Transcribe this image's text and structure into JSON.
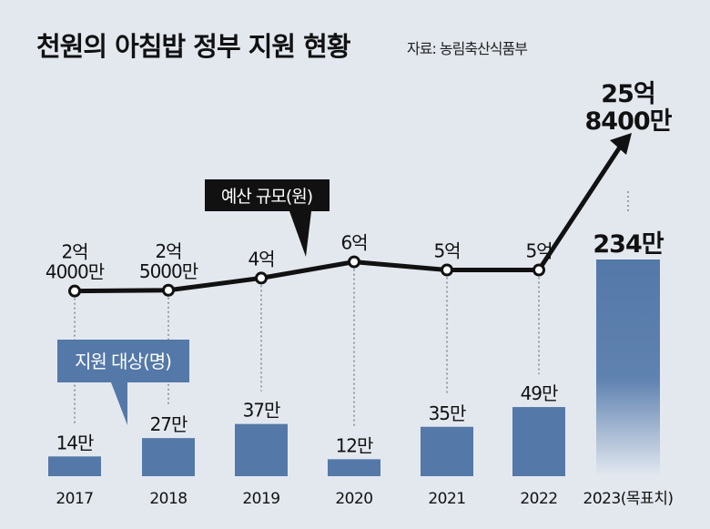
{
  "title": "천원의 아침밥 정부 지원 현황",
  "source": "자료: 농림축산식품부",
  "colors": {
    "background": "#e3e8ef",
    "bar": "#5478a8",
    "line": "#111111",
    "callout_budget": "#111111",
    "callout_people": "#5478a8"
  },
  "chart_data": {
    "type": "bar+line",
    "title": "천원의 아침밥 정부 지원 현황",
    "categories": [
      "2017",
      "2018",
      "2019",
      "2020",
      "2021",
      "2022",
      "2023(목표치)"
    ],
    "series": [
      {
        "name": "지원 대상(명)",
        "type": "bar",
        "unit": "만 명",
        "values": [
          14,
          27,
          37,
          12,
          35,
          49,
          234
        ],
        "labels": [
          "14만",
          "27만",
          "37만",
          "12만",
          "35만",
          "49만",
          "234만"
        ]
      },
      {
        "name": "예산 규모(원)",
        "type": "line",
        "unit": "억 원",
        "values": [
          2.4,
          2.5,
          4,
          6,
          5,
          5,
          25.84
        ],
        "labels": [
          [
            "2억",
            "4000만"
          ],
          [
            "2억",
            "5000만"
          ],
          [
            "4억"
          ],
          [
            "6억"
          ],
          [
            "5억"
          ],
          [
            "5억"
          ],
          [
            "25억",
            "8400만"
          ]
        ]
      }
    ],
    "callouts": {
      "budget": "예산 규모(원)",
      "people": "지원 대상(명)"
    },
    "grid": false,
    "legend": "callouts"
  }
}
